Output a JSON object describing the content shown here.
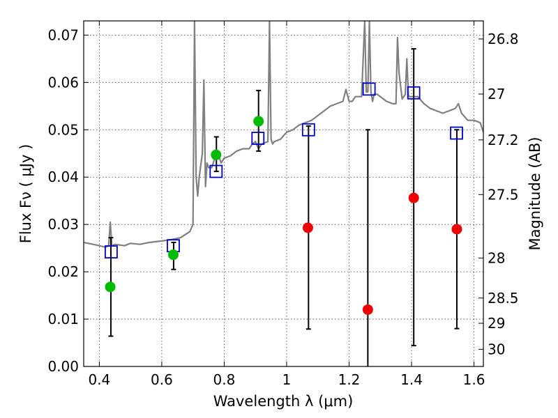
{
  "chart_data": {
    "type": "scatter",
    "xlabel": "Wavelength  λ (μm)",
    "ylabel": "Flux  Fν  ( μJy )",
    "y2label": "Magnitude (AB)",
    "xlim": [
      0.35,
      1.63
    ],
    "ylim": [
      0.0,
      0.073
    ],
    "x_ticks": [
      "0.4",
      "0.6",
      "0.8",
      "1",
      "1.2",
      "1.4",
      "1.6"
    ],
    "x_tick_values": [
      0.4,
      0.6,
      0.8,
      1.0,
      1.2,
      1.4,
      1.6
    ],
    "y_ticks": [
      "0.00",
      "0.01",
      "0.02",
      "0.03",
      "0.04",
      "0.05",
      "0.06",
      "0.07"
    ],
    "y_tick_values": [
      0.0,
      0.01,
      0.02,
      0.03,
      0.04,
      0.05,
      0.06,
      0.07
    ],
    "mag_ticks": [
      "26.8",
      "27",
      "27.2",
      "27.5",
      "28",
      "28.5",
      "29",
      "30"
    ],
    "mag_tick_values": [
      26.8,
      27.0,
      27.2,
      27.5,
      28.0,
      28.5,
      29.0,
      30.0
    ],
    "grid": true,
    "colors": {
      "spectrum": "#808080",
      "model": "#0000cc",
      "detection": "#00bb00",
      "upper": "#ee0000",
      "errorbar": "#000000"
    },
    "spectrum": {
      "x": [
        0.35,
        0.38,
        0.4,
        0.42,
        0.43,
        0.435,
        0.44,
        0.45,
        0.48,
        0.5,
        0.53,
        0.56,
        0.6,
        0.63,
        0.66,
        0.69,
        0.7,
        0.705,
        0.71,
        0.715,
        0.72,
        0.73,
        0.735,
        0.74,
        0.745,
        0.75,
        0.76,
        0.77,
        0.78,
        0.79,
        0.8,
        0.82,
        0.84,
        0.86,
        0.88,
        0.89,
        0.9,
        0.91,
        0.92,
        0.94,
        0.945,
        0.95,
        0.955,
        0.96,
        0.98,
        1.0,
        1.02,
        1.04,
        1.06,
        1.08,
        1.1,
        1.12,
        1.14,
        1.16,
        1.18,
        1.19,
        1.2,
        1.21,
        1.22,
        1.24,
        1.25,
        1.255,
        1.26,
        1.265,
        1.27,
        1.275,
        1.28,
        1.29,
        1.3,
        1.32,
        1.34,
        1.35,
        1.355,
        1.36,
        1.37,
        1.38,
        1.385,
        1.39,
        1.4,
        1.42,
        1.44,
        1.46,
        1.48,
        1.5,
        1.52,
        1.54,
        1.55,
        1.56,
        1.58,
        1.6,
        1.62,
        1.63
      ],
      "y": [
        0.0262,
        0.0258,
        0.0255,
        0.0252,
        0.0255,
        0.0305,
        0.0255,
        0.0258,
        0.0255,
        0.026,
        0.0258,
        0.0262,
        0.0265,
        0.0268,
        0.0272,
        0.0285,
        0.03,
        0.073,
        0.04,
        0.036,
        0.04,
        0.045,
        0.0605,
        0.038,
        0.043,
        0.042,
        0.042,
        0.044,
        0.045,
        0.043,
        0.044,
        0.0445,
        0.0455,
        0.046,
        0.046,
        0.047,
        0.0475,
        0.046,
        0.047,
        0.0475,
        0.073,
        0.048,
        0.047,
        0.0475,
        0.048,
        0.0495,
        0.05,
        0.051,
        0.0515,
        0.052,
        0.053,
        0.054,
        0.055,
        0.0555,
        0.056,
        0.0585,
        0.056,
        0.056,
        0.057,
        0.057,
        0.073,
        0.058,
        0.058,
        0.073,
        0.058,
        0.056,
        0.0575,
        0.0575,
        0.057,
        0.056,
        0.0555,
        0.0555,
        0.0695,
        0.062,
        0.0565,
        0.0575,
        0.065,
        0.057,
        0.057,
        0.057,
        0.0555,
        0.0545,
        0.054,
        0.0535,
        0.054,
        0.0545,
        0.0555,
        0.0535,
        0.052,
        0.052,
        0.0515,
        0.0495
      ]
    },
    "series": [
      {
        "x": [
          0.438,
          0.637,
          0.774,
          0.908,
          1.07,
          1.264,
          1.407,
          1.544
        ],
        "values": [
          0.0242,
          0.0255,
          0.0412,
          0.0482,
          0.05,
          0.0586,
          0.0578,
          0.0493
        ]
      },
      {
        "x": [
          0.435,
          0.637,
          0.774,
          0.91
        ],
        "values": [
          0.0168,
          0.0236,
          0.0447,
          0.0518
        ]
      },
      {
        "x": [
          1.068,
          1.26,
          1.407,
          1.545
        ],
        "values": [
          0.0293,
          0.012,
          0.0356,
          0.029
        ]
      }
    ],
    "error_bars": [
      {
        "x": 0.437,
        "low": 0.0064,
        "high": 0.0272
      },
      {
        "x": 0.638,
        "low": 0.0205,
        "high": 0.0262
      },
      {
        "x": 0.775,
        "low": 0.0412,
        "high": 0.0485
      },
      {
        "x": 0.91,
        "low": 0.0455,
        "high": 0.0583
      },
      {
        "x": 1.07,
        "low": 0.0079,
        "high": 0.0508
      },
      {
        "x": 1.26,
        "low": 0.0,
        "high": 0.05
      },
      {
        "x": 1.407,
        "low": 0.0044,
        "high": 0.0671
      },
      {
        "x": 1.545,
        "low": 0.008,
        "high": 0.05
      }
    ]
  }
}
